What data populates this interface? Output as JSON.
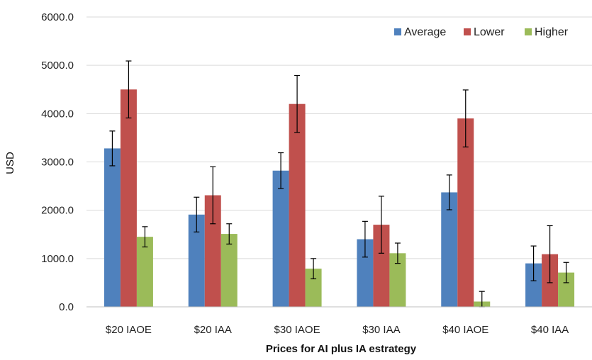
{
  "chart_data": {
    "type": "bar",
    "title": "",
    "xlabel": "Prices for AI plus IA estrategy",
    "ylabel": "USD",
    "ylim": [
      0,
      6000
    ],
    "yticks": [
      0,
      1000,
      2000,
      3000,
      4000,
      5000,
      6000
    ],
    "ytick_labels": [
      "0.0",
      "1000.0",
      "2000.0",
      "3000.0",
      "4000.0",
      "5000.0",
      "6000.0"
    ],
    "grid": true,
    "legend_position": "top-right",
    "categories": [
      "$20 IAOE",
      "$20 IAA",
      "$30 IAOE",
      "$30 IAA",
      "$40 IAOE",
      "$40 IAA"
    ],
    "series": [
      {
        "name": "Average",
        "color": "#4F81BD",
        "values": [
          3280,
          1910,
          2820,
          1400,
          2370,
          900
        ],
        "errors": [
          360,
          360,
          370,
          370,
          360,
          360
        ]
      },
      {
        "name": "Lower",
        "color": "#C0504D",
        "values": [
          4500,
          2310,
          4200,
          1700,
          3900,
          1090
        ],
        "errors": [
          590,
          590,
          590,
          590,
          590,
          590
        ]
      },
      {
        "name": "Higher",
        "color": "#9BBB59",
        "values": [
          1450,
          1510,
          790,
          1110,
          110,
          710
        ],
        "errors": [
          210,
          210,
          210,
          210,
          210,
          210
        ]
      }
    ]
  }
}
